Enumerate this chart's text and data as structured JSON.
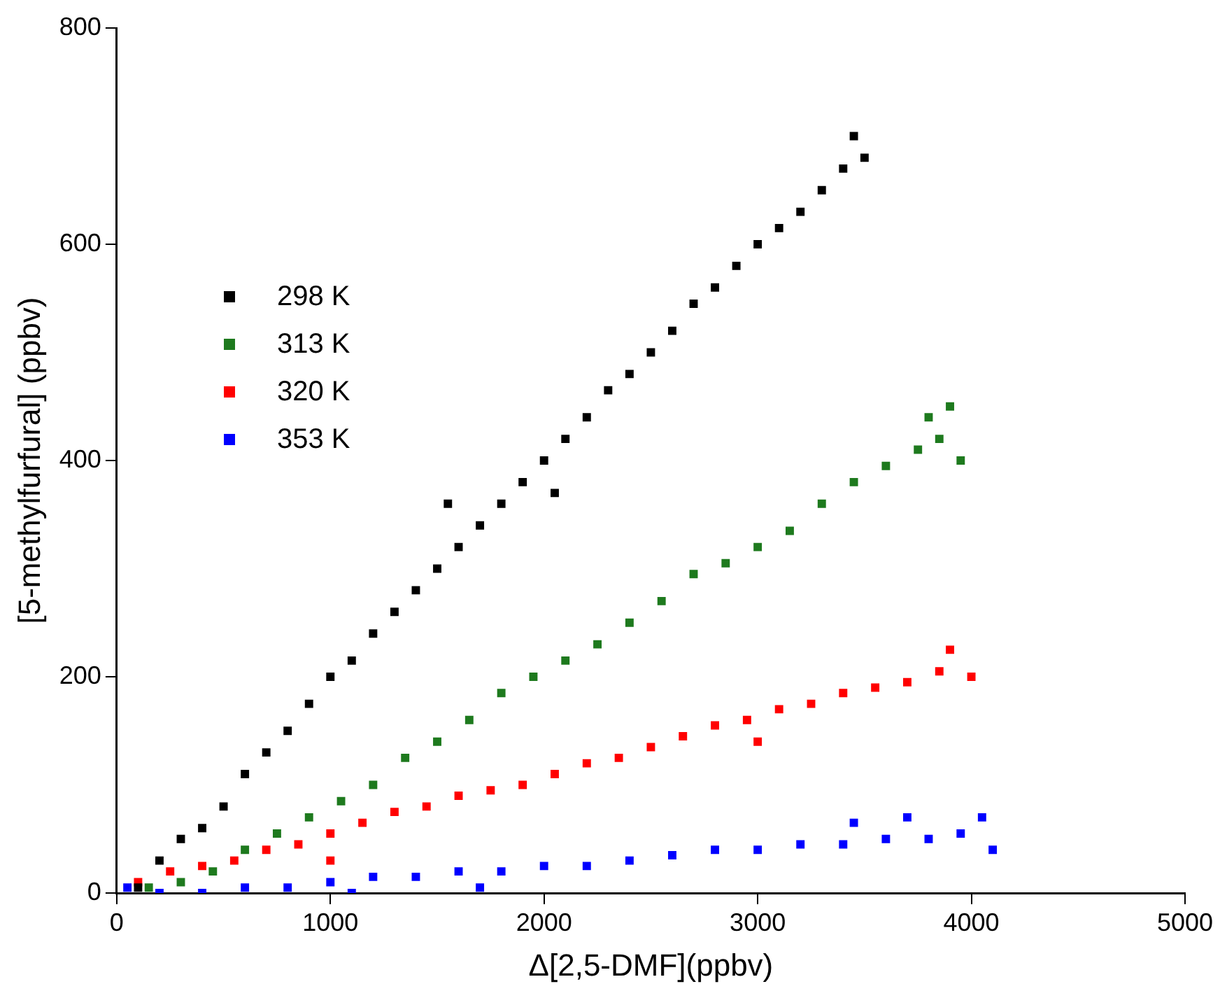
{
  "chart_data": {
    "type": "scatter",
    "xlabel": "Δ[2,5-DMF](ppbv)",
    "ylabel": "[5-methylfurfural] (ppbv)",
    "xlim": [
      0,
      5000
    ],
    "xticks": [
      0,
      1000,
      2000,
      3000,
      4000,
      5000
    ],
    "ylim": [
      0,
      800
    ],
    "yticks": [
      0,
      200,
      400,
      600,
      800
    ],
    "grid": false,
    "legend": "top left",
    "marker": "square",
    "series": [
      {
        "name": "298 K",
        "color": "#000000",
        "x": [
          100,
          200,
          300,
          400,
          500,
          600,
          700,
          800,
          900,
          1000,
          1100,
          1200,
          1300,
          1400,
          1500,
          1600,
          1700,
          1800,
          1900,
          2000,
          2100,
          2200,
          2300,
          2400,
          2500,
          2600,
          2700,
          2800,
          2900,
          3000,
          3100,
          3200,
          3300,
          3400,
          3450,
          3500,
          1550,
          2050
        ],
        "values": [
          5,
          30,
          50,
          60,
          80,
          110,
          130,
          150,
          175,
          200,
          215,
          240,
          260,
          280,
          300,
          320,
          340,
          360,
          380,
          400,
          420,
          440,
          465,
          480,
          500,
          520,
          545,
          560,
          580,
          600,
          615,
          630,
          650,
          670,
          700,
          680,
          360,
          370
        ]
      },
      {
        "name": "313 K",
        "color": "#1e7a1e",
        "x": [
          150,
          300,
          450,
          600,
          750,
          900,
          1050,
          1200,
          1350,
          1500,
          1650,
          1800,
          1950,
          2100,
          2250,
          2400,
          2550,
          2700,
          2850,
          3000,
          3150,
          3300,
          3450,
          3600,
          3750,
          3850,
          3900,
          3950,
          3800
        ],
        "values": [
          5,
          10,
          20,
          40,
          55,
          70,
          85,
          100,
          125,
          140,
          160,
          185,
          200,
          215,
          230,
          250,
          270,
          295,
          305,
          320,
          335,
          360,
          380,
          395,
          410,
          420,
          450,
          400,
          440
        ]
      },
      {
        "name": "320 K",
        "color": "#ff0000",
        "x": [
          100,
          250,
          400,
          550,
          700,
          850,
          1000,
          1150,
          1300,
          1450,
          1600,
          1750,
          1900,
          2050,
          2200,
          2350,
          2500,
          2650,
          2800,
          2950,
          3100,
          3250,
          3400,
          3550,
          3700,
          3850,
          3900,
          4000,
          3000,
          1000
        ],
        "values": [
          10,
          20,
          25,
          30,
          40,
          45,
          55,
          65,
          75,
          80,
          90,
          95,
          100,
          110,
          120,
          125,
          135,
          145,
          155,
          160,
          170,
          175,
          185,
          190,
          195,
          205,
          225,
          200,
          140,
          30
        ]
      },
      {
        "name": "353 K",
        "color": "#0000ff",
        "x": [
          50,
          200,
          400,
          600,
          800,
          1000,
          1200,
          1400,
          1600,
          1800,
          2000,
          2200,
          2400,
          2600,
          2800,
          3000,
          3200,
          3400,
          3600,
          3700,
          3800,
          3950,
          4050,
          4100,
          1100,
          1700,
          3450
        ],
        "values": [
          5,
          0,
          0,
          5,
          5,
          10,
          15,
          15,
          20,
          20,
          25,
          25,
          30,
          35,
          40,
          40,
          45,
          45,
          50,
          70,
          50,
          55,
          70,
          40,
          0,
          5,
          65
        ]
      }
    ]
  }
}
